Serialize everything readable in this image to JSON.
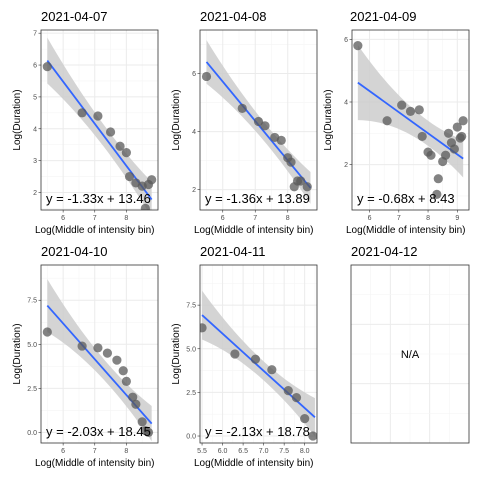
{
  "chart_data": [
    {
      "type": "scatter",
      "title": "2021-04-07",
      "xlabel": "Log(Middle of intensity bin)",
      "ylabel": "Log(Duration)",
      "xlim": [
        5.3,
        9.0
      ],
      "ylim": [
        1.45,
        7.1
      ],
      "xticks": [
        6,
        7,
        8
      ],
      "yticks": [
        2,
        3,
        4,
        5,
        6,
        7
      ],
      "points": [
        [
          5.5,
          5.95
        ],
        [
          6.6,
          4.5
        ],
        [
          7.1,
          4.4
        ],
        [
          7.5,
          3.9
        ],
        [
          7.8,
          3.45
        ],
        [
          8.0,
          3.25
        ],
        [
          8.1,
          2.5
        ],
        [
          8.3,
          2.3
        ],
        [
          8.5,
          2.2
        ],
        [
          8.6,
          1.5
        ],
        [
          8.7,
          2.25
        ],
        [
          8.8,
          2.4
        ]
      ],
      "fit_line": [
        [
          5.5,
          6.14
        ],
        [
          8.8,
          1.78
        ]
      ],
      "band_half_width": [
        0.72,
        0.35,
        0.55
      ],
      "equation": "y = -1.33x + 13.46"
    },
    {
      "type": "scatter",
      "title": "2021-04-08",
      "xlabel": "Log(Middle of intensity bin)",
      "ylabel": "Log(Duration)",
      "xlim": [
        5.3,
        8.9
      ],
      "ylim": [
        1.3,
        7.5
      ],
      "xticks": [
        6,
        7,
        8
      ],
      "yticks": [
        2,
        4,
        6
      ],
      "points": [
        [
          5.5,
          5.9
        ],
        [
          6.6,
          4.8
        ],
        [
          7.1,
          4.35
        ],
        [
          7.3,
          4.2
        ],
        [
          7.6,
          3.8
        ],
        [
          7.8,
          3.7
        ],
        [
          8.0,
          3.1
        ],
        [
          8.1,
          2.95
        ],
        [
          8.2,
          2.1
        ],
        [
          8.3,
          2.3
        ],
        [
          8.4,
          2.3
        ],
        [
          8.6,
          2.1
        ]
      ],
      "fit_line": [
        [
          5.5,
          6.4
        ],
        [
          8.7,
          2.06
        ]
      ],
      "band_half_width": [
        0.75,
        0.33,
        0.55
      ],
      "equation": "y = -1.36x + 13.89"
    },
    {
      "type": "scatter",
      "title": "2021-04-09",
      "xlabel": "Log(Middle of intensity bin)",
      "ylabel": "Log(Duration)",
      "xlim": [
        5.4,
        9.4
      ],
      "ylim": [
        0.55,
        6.3
      ],
      "xticks": [
        6,
        7,
        8,
        9
      ],
      "yticks": [
        2,
        4,
        6
      ],
      "points": [
        [
          5.6,
          5.8
        ],
        [
          6.6,
          3.4
        ],
        [
          7.1,
          3.9
        ],
        [
          7.4,
          3.7
        ],
        [
          7.7,
          3.75
        ],
        [
          7.8,
          2.9
        ],
        [
          8.0,
          2.4
        ],
        [
          8.1,
          2.3
        ],
        [
          8.3,
          1.05
        ],
        [
          8.35,
          1.55
        ],
        [
          8.5,
          2.1
        ],
        [
          8.6,
          2.3
        ],
        [
          8.7,
          3.0
        ],
        [
          8.8,
          2.7
        ],
        [
          8.9,
          2.5
        ],
        [
          9.0,
          3.2
        ],
        [
          9.1,
          2.85
        ],
        [
          9.15,
          2.9
        ],
        [
          9.2,
          3.4
        ]
      ],
      "fit_line": [
        [
          5.6,
          4.62
        ],
        [
          9.2,
          2.19
        ]
      ],
      "band_half_width": [
        1.2,
        0.45,
        0.6
      ],
      "equation": "y = -0.68x + 8.43"
    },
    {
      "type": "scatter",
      "title": "2021-04-10",
      "xlabel": "Log(Middle of intensity bin)",
      "ylabel": "Log(Duration)",
      "xlim": [
        5.3,
        9.0
      ],
      "ylim": [
        -0.6,
        9.5
      ],
      "xticks": [
        6,
        7,
        8
      ],
      "yticks": [
        0.0,
        2.5,
        5.0,
        7.5
      ],
      "ytick_labels": [
        "0.0",
        "2.5",
        "5.0",
        "7.5"
      ],
      "points": [
        [
          5.5,
          5.7
        ],
        [
          6.6,
          4.9
        ],
        [
          7.1,
          4.8
        ],
        [
          7.4,
          4.5
        ],
        [
          7.7,
          4.1
        ],
        [
          7.9,
          3.5
        ],
        [
          8.0,
          2.9
        ],
        [
          8.2,
          2.0
        ],
        [
          8.3,
          1.6
        ],
        [
          8.5,
          0.6
        ],
        [
          8.6,
          0.1
        ],
        [
          8.7,
          0.0
        ]
      ],
      "fit_line": [
        [
          5.5,
          7.2
        ],
        [
          8.8,
          0.5
        ]
      ],
      "band_half_width": [
        1.5,
        0.6,
        1.0
      ],
      "equation": "y = -2.03x + 18.45"
    },
    {
      "type": "scatter",
      "title": "2021-04-11",
      "xlabel": "Log(Middle of intensity bin)",
      "ylabel": "Log(Duration)",
      "xlim": [
        5.45,
        8.3
      ],
      "ylim": [
        -0.4,
        9.8
      ],
      "xticks": [
        5.5,
        6.0,
        6.5,
        7.0,
        7.5,
        8.0
      ],
      "xtick_labels": [
        "5.5",
        "6.0",
        "6.5",
        "7.0",
        "7.5",
        "8.0"
      ],
      "yticks": [
        0.0,
        2.5,
        5.0,
        7.5
      ],
      "ytick_labels": [
        "0.0",
        "2.5",
        "5.0",
        "7.5"
      ],
      "points": [
        [
          5.5,
          6.2
        ],
        [
          6.3,
          4.7
        ],
        [
          6.8,
          4.4
        ],
        [
          7.2,
          3.8
        ],
        [
          7.6,
          2.6
        ],
        [
          7.8,
          2.2
        ],
        [
          8.0,
          1.0
        ],
        [
          8.2,
          0.0
        ]
      ],
      "fit_line": [
        [
          5.5,
          6.93
        ],
        [
          8.25,
          1.07
        ]
      ],
      "band_half_width": [
        1.4,
        0.55,
        1.1
      ],
      "equation": "y = -2.13x + 18.78"
    },
    {
      "type": "scatter",
      "title": "2021-04-12",
      "xlabel": "",
      "ylabel": "",
      "empty": true,
      "message": "N/A"
    }
  ],
  "colors": {
    "point": "#595959",
    "line": "#3366FF",
    "band": "#cccccc",
    "grid_major": "#ebebeb",
    "grid_minor": "#f5f5f5",
    "border": "#333333"
  }
}
